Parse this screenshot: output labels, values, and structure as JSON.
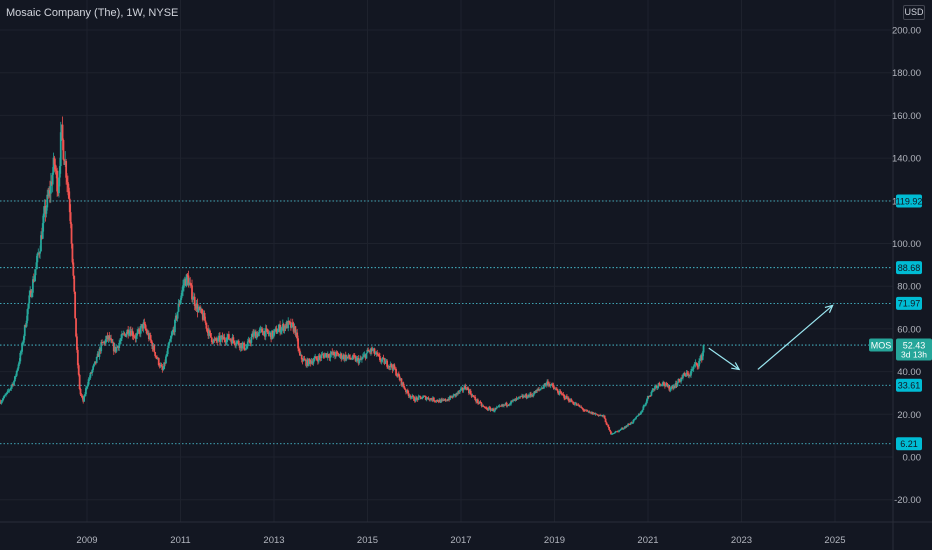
{
  "header": {
    "title": "Mosaic Company (The), 1W, NYSE",
    "currency": "USD"
  },
  "colors": {
    "background": "#131722",
    "grid": "#1e222d",
    "axis_text": "#b2b5be",
    "up_candle": "#26a69a",
    "down_candle": "#ef5350",
    "level_line": "#4dd0e1",
    "level_label_bg": "#00bcd4",
    "arrow": "#9ae6f0"
  },
  "chart_data": {
    "type": "candlestick",
    "symbol": "MOS",
    "interval": "1W",
    "exchange": "NYSE",
    "y_axis": {
      "ticks": [
        -20,
        0,
        20,
        40,
        60,
        80,
        100,
        120,
        140,
        160,
        180,
        200
      ],
      "tick_labels": [
        "-20.00",
        "0.00",
        "20.00",
        "40.00",
        "60.00",
        "80.00",
        "100.00",
        "120.00",
        "140.00",
        "160.00",
        "180.00",
        "200.00"
      ],
      "range": [
        -30,
        206
      ]
    },
    "x_axis": {
      "ticks": [
        2009,
        2011,
        2013,
        2015,
        2017,
        2019,
        2021,
        2023,
        2025
      ],
      "tick_labels": [
        "2009",
        "2011",
        "2013",
        "2015",
        "2017",
        "2019",
        "2021",
        "2023",
        "2025"
      ],
      "range": [
        2007.15,
        2026.65
      ]
    },
    "price_path": [
      [
        2007.15,
        26
      ],
      [
        2007.3,
        30
      ],
      [
        2007.45,
        36
      ],
      [
        2007.6,
        50
      ],
      [
        2007.75,
        72
      ],
      [
        2007.9,
        88
      ],
      [
        2008.0,
        100
      ],
      [
        2008.1,
        115
      ],
      [
        2008.2,
        124
      ],
      [
        2008.3,
        138
      ],
      [
        2008.38,
        126
      ],
      [
        2008.45,
        152
      ],
      [
        2008.52,
        140
      ],
      [
        2008.58,
        130
      ],
      [
        2008.65,
        112
      ],
      [
        2008.72,
        78
      ],
      [
        2008.78,
        50
      ],
      [
        2008.85,
        30
      ],
      [
        2008.92,
        26
      ],
      [
        2009.0,
        34
      ],
      [
        2009.1,
        40
      ],
      [
        2009.2,
        45
      ],
      [
        2009.3,
        52
      ],
      [
        2009.45,
        56
      ],
      [
        2009.6,
        50
      ],
      [
        2009.75,
        56
      ],
      [
        2009.9,
        60
      ],
      [
        2010.05,
        56
      ],
      [
        2010.2,
        62
      ],
      [
        2010.35,
        55
      ],
      [
        2010.5,
        46
      ],
      [
        2010.62,
        40
      ],
      [
        2010.75,
        52
      ],
      [
        2010.88,
        62
      ],
      [
        2011.0,
        75
      ],
      [
        2011.08,
        82
      ],
      [
        2011.15,
        84
      ],
      [
        2011.25,
        76
      ],
      [
        2011.35,
        70
      ],
      [
        2011.5,
        65
      ],
      [
        2011.62,
        57
      ],
      [
        2011.72,
        54
      ],
      [
        2011.85,
        55
      ],
      [
        2012.0,
        56
      ],
      [
        2012.2,
        54
      ],
      [
        2012.4,
        51
      ],
      [
        2012.55,
        57
      ],
      [
        2012.75,
        59
      ],
      [
        2012.95,
        57
      ],
      [
        2013.1,
        60
      ],
      [
        2013.3,
        62
      ],
      [
        2013.45,
        60
      ],
      [
        2013.55,
        47
      ],
      [
        2013.7,
        44
      ],
      [
        2013.9,
        46
      ],
      [
        2014.1,
        48
      ],
      [
        2014.3,
        48
      ],
      [
        2014.5,
        47
      ],
      [
        2014.7,
        46
      ],
      [
        2014.85,
        45
      ],
      [
        2015.0,
        49
      ],
      [
        2015.1,
        50
      ],
      [
        2015.25,
        46
      ],
      [
        2015.4,
        44
      ],
      [
        2015.55,
        42
      ],
      [
        2015.7,
        36
      ],
      [
        2015.85,
        30
      ],
      [
        2016.0,
        27
      ],
      [
        2016.2,
        28
      ],
      [
        2016.4,
        27
      ],
      [
        2016.6,
        26
      ],
      [
        2016.8,
        28
      ],
      [
        2017.0,
        31
      ],
      [
        2017.1,
        33
      ],
      [
        2017.3,
        27
      ],
      [
        2017.5,
        23
      ],
      [
        2017.7,
        22
      ],
      [
        2017.9,
        24
      ],
      [
        2018.1,
        26
      ],
      [
        2018.3,
        28
      ],
      [
        2018.5,
        29
      ],
      [
        2018.7,
        32
      ],
      [
        2018.85,
        35
      ],
      [
        2018.95,
        33
      ],
      [
        2019.1,
        30
      ],
      [
        2019.3,
        27
      ],
      [
        2019.5,
        24
      ],
      [
        2019.7,
        21
      ],
      [
        2019.9,
        20
      ],
      [
        2020.05,
        19
      ],
      [
        2020.2,
        11
      ],
      [
        2020.35,
        12
      ],
      [
        2020.5,
        14
      ],
      [
        2020.7,
        17
      ],
      [
        2020.85,
        21
      ],
      [
        2021.0,
        28
      ],
      [
        2021.15,
        33
      ],
      [
        2021.3,
        35
      ],
      [
        2021.45,
        32
      ],
      [
        2021.6,
        34
      ],
      [
        2021.75,
        38
      ],
      [
        2021.9,
        39
      ],
      [
        2022.0,
        43
      ],
      [
        2022.08,
        44
      ],
      [
        2022.15,
        47
      ],
      [
        2022.2,
        52.43
      ]
    ],
    "horizontal_levels": [
      {
        "value": 119.92,
        "label": "119.92"
      },
      {
        "value": 88.68,
        "label": "88.68"
      },
      {
        "value": 71.97,
        "label": "71.97"
      },
      {
        "value": 52.43,
        "label": "52.43"
      },
      {
        "value": 33.61,
        "label": "33.61"
      },
      {
        "value": 6.21,
        "label": "6.21"
      }
    ],
    "last_price": {
      "symbol": "MOS",
      "value": 52.43,
      "label": "52.43",
      "countdown": "3d 13h"
    },
    "arrows": [
      {
        "from": [
          2022.3,
          51
        ],
        "to": [
          2022.95,
          41
        ]
      },
      {
        "from": [
          2023.35,
          41
        ],
        "to": [
          2024.95,
          71
        ]
      }
    ]
  }
}
